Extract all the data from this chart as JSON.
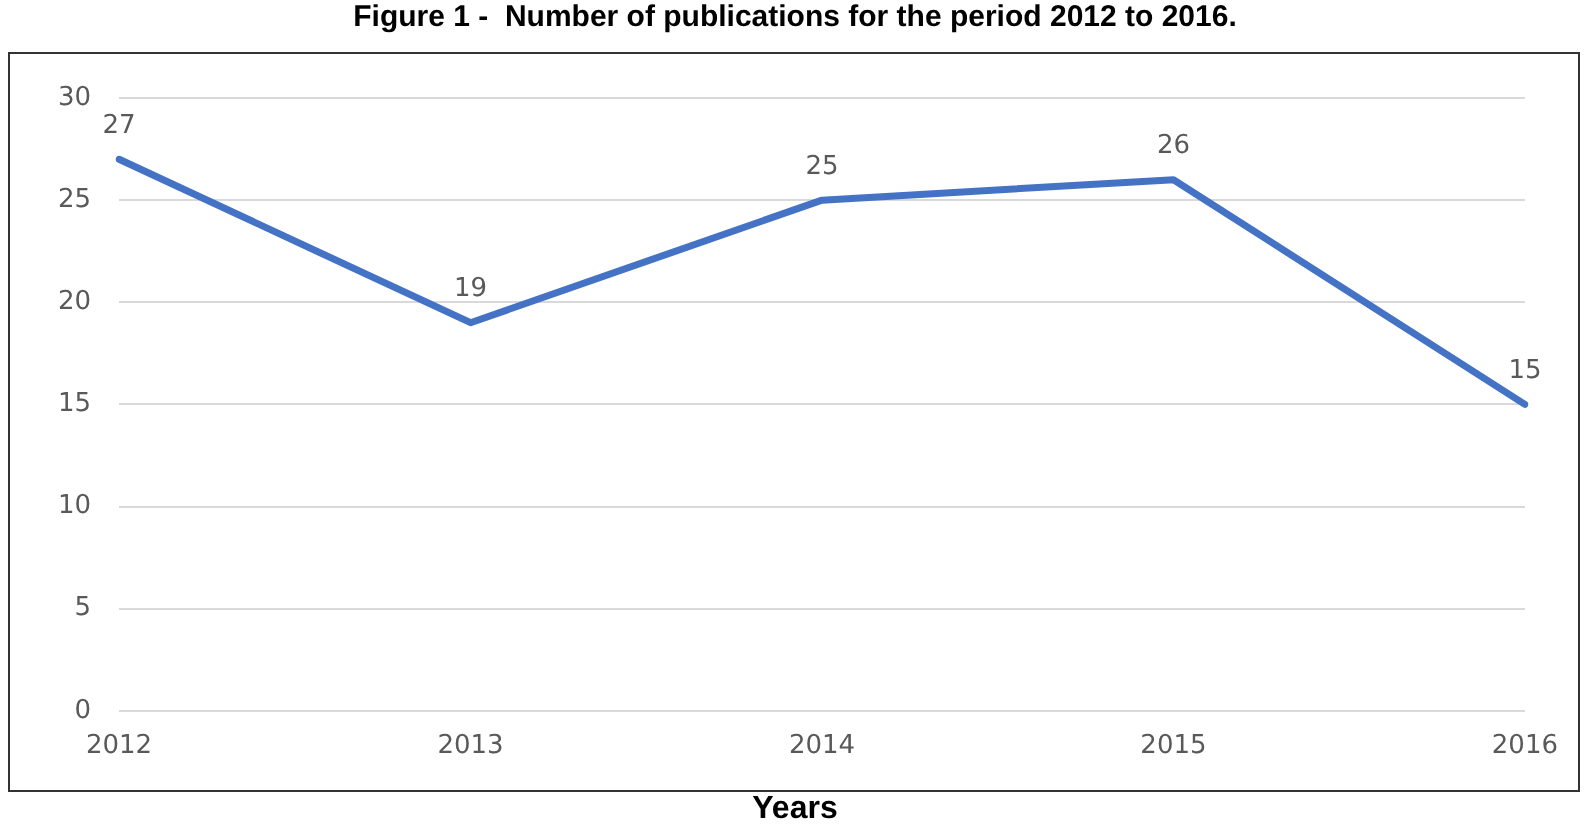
{
  "chart_data": {
    "type": "line",
    "title": "Figure 1 -  Number of publications for the period 2012 to 2016.",
    "xlabel": "Years",
    "categories": [
      "2012",
      "2013",
      "2014",
      "2015",
      "2016"
    ],
    "series": [
      {
        "color": "#4472c4",
        "values": [
          27,
          19,
          25,
          26,
          15
        ]
      }
    ],
    "ylim": [
      0,
      30
    ],
    "yticks": [
      0,
      5,
      10,
      15,
      20,
      25,
      30
    ],
    "grid": "y",
    "legend": false,
    "marker": "none",
    "line_style": "solid",
    "data_labels": true
  }
}
